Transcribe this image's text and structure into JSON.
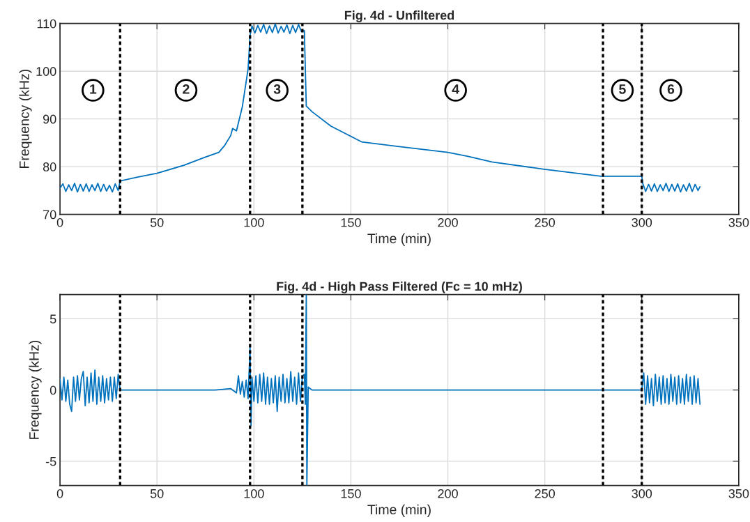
{
  "chart_data": [
    {
      "type": "line",
      "title": "Fig. 4d - Unfiltered",
      "xlabel": "Time (min)",
      "ylabel": "Frequency (kHz)",
      "xlim": [
        0,
        350
      ],
      "xticks": [
        0,
        50,
        100,
        150,
        200,
        250,
        300,
        350
      ],
      "ylim": [
        70,
        110
      ],
      "yticks": [
        70,
        80,
        90,
        100,
        110
      ],
      "grid": true,
      "line_style": "solid",
      "series": [
        {
          "color": "#0072bd",
          "x": [
            0,
            1.5,
            3,
            4.5,
            6,
            7.5,
            9,
            10.5,
            12,
            13.5,
            15,
            16.5,
            18,
            19.5,
            21,
            22.5,
            24,
            25.5,
            27,
            28.5,
            30,
            31,
            40,
            50,
            63.9,
            75,
            81.9,
            85,
            88,
            89,
            91,
            94,
            97,
            98,
            99,
            100.5,
            102,
            103.5,
            105,
            106.5,
            108,
            109.5,
            111,
            112.5,
            114,
            115.5,
            117,
            118.5,
            120,
            121.5,
            123,
            124.5,
            126,
            127,
            130,
            139.7,
            155.5,
            175,
            200,
            210,
            222.7,
            249,
            265,
            279,
            300,
            300.5,
            302,
            303.5,
            305,
            306.5,
            308,
            309.5,
            311,
            312.5,
            314,
            315.5,
            317,
            318.5,
            320,
            321.5,
            323,
            324.5,
            326,
            327.5,
            329,
            330
          ],
          "values": [
            75.5,
            76.4,
            74.8,
            76.2,
            75.0,
            76.5,
            74.7,
            76.3,
            74.9,
            76.4,
            74.8,
            76.2,
            75.0,
            76.5,
            74.8,
            76.3,
            74.9,
            76.1,
            74.7,
            76.4,
            75.0,
            77.0,
            77.8,
            78.6,
            80.3,
            82.0,
            83.0,
            84.5,
            86.5,
            88.0,
            87.5,
            92.5,
            100.5,
            107.5,
            109.5,
            108.0,
            109.6,
            108.2,
            109.8,
            107.9,
            109.5,
            108.1,
            109.9,
            108.0,
            109.4,
            108.2,
            109.7,
            107.9,
            109.6,
            108.1,
            109.8,
            108.3,
            108.5,
            92.7,
            91.5,
            88.5,
            85.2,
            84.2,
            83.0,
            82.2,
            81.0,
            79.5,
            78.7,
            78.0,
            78.0,
            76.5,
            74.8,
            76.3,
            74.9,
            76.4,
            74.8,
            76.2,
            75.0,
            76.5,
            74.8,
            76.3,
            74.9,
            76.4,
            74.7,
            76.2,
            74.9,
            76.5,
            74.8,
            76.3,
            75.0,
            75.8
          ]
        }
      ],
      "ref_lines": [
        {
          "axis": "x",
          "value": 31,
          "color": "#000000",
          "line_style": "dotted"
        },
        {
          "axis": "x",
          "value": 98,
          "color": "#000000",
          "line_style": "dotted"
        },
        {
          "axis": "x",
          "value": 125,
          "color": "#000000",
          "line_style": "dotted"
        },
        {
          "axis": "x",
          "value": 280,
          "color": "#000000",
          "line_style": "dotted"
        },
        {
          "axis": "x",
          "value": 300,
          "color": "#000000",
          "line_style": "dotted"
        }
      ],
      "annotations": [
        {
          "text": "1",
          "x": 17,
          "y": 96
        },
        {
          "text": "2",
          "x": 65,
          "y": 96
        },
        {
          "text": "3",
          "x": 112,
          "y": 96
        },
        {
          "text": "4",
          "x": 204,
          "y": 96
        },
        {
          "text": "5",
          "x": 290,
          "y": 96
        },
        {
          "text": "6",
          "x": 315,
          "y": 96
        }
      ]
    },
    {
      "type": "line",
      "title": "Fig. 4d - High Pass Filtered (Fc = 10 mHz)",
      "xlabel": "Time (min)",
      "ylabel": "Frequency (kHz)",
      "xlim": [
        0,
        350
      ],
      "xticks": [
        0,
        50,
        100,
        150,
        200,
        250,
        300,
        350
      ],
      "ylim": [
        -6.7,
        6.7
      ],
      "yticks": [
        {
          "value": -5,
          "label": "-5"
        },
        0,
        5
      ],
      "grid": true,
      "line_style": "solid",
      "series": [
        {
          "color": "#0072bd",
          "x": [
            0,
            1,
            2,
            3,
            4,
            5,
            6,
            7,
            8,
            9,
            10,
            11,
            12,
            13,
            14,
            15,
            16,
            17,
            18,
            19,
            20,
            21,
            22,
            23,
            24,
            25,
            26,
            27,
            28,
            29,
            30,
            31,
            50,
            80,
            88,
            91,
            92,
            93,
            94,
            95,
            96,
            97,
            98,
            98.5,
            99,
            100,
            101,
            102,
            103,
            104,
            105,
            106,
            107,
            108,
            109,
            110,
            111,
            112,
            113,
            114,
            115,
            116,
            117,
            118,
            119,
            120,
            121,
            122,
            123,
            124,
            125,
            126,
            126.5,
            127,
            127.3,
            128,
            130,
            150,
            200,
            250,
            300,
            301,
            302,
            303,
            304,
            305,
            306,
            307,
            308,
            309,
            310,
            311,
            312,
            313,
            314,
            315,
            316,
            317,
            318,
            319,
            320,
            321,
            322,
            323,
            324,
            325,
            326,
            327,
            328,
            329,
            330
          ],
          "values": [
            0.8,
            -0.7,
            0.9,
            -0.8,
            0.7,
            -1.0,
            -1.5,
            0.9,
            -0.8,
            1.0,
            -0.7,
            0.8,
            1.3,
            -1.1,
            0.9,
            -0.9,
            1.2,
            -0.8,
            1.4,
            -1.0,
            0.9,
            -0.8,
            1.0,
            -0.9,
            0.8,
            -0.7,
            0.9,
            -0.8,
            0.9,
            -0.6,
            1.1,
            0,
            0,
            0,
            0.1,
            -0.2,
            1.0,
            -0.3,
            0.6,
            -0.5,
            0.7,
            -0.6,
            3.0,
            -2.5,
            0.9,
            -0.8,
            1.0,
            -0.9,
            1.1,
            -0.8,
            1.2,
            -1.0,
            0.9,
            -1.0,
            0.8,
            -0.9,
            1.0,
            -1.5,
            0.9,
            -0.8,
            1.1,
            -0.9,
            0.8,
            -0.9,
            1.3,
            -0.8,
            0.9,
            -1.0,
            1.2,
            -0.8,
            1.0,
            1.1,
            -1.0,
            6.7,
            -6.7,
            0.2,
            0,
            0,
            0,
            0,
            0,
            1.2,
            -1.0,
            1.0,
            -0.9,
            0.8,
            -1.1,
            1.1,
            -0.8,
            0.9,
            -1.0,
            1.0,
            -0.9,
            0.8,
            -1.0,
            1.1,
            -0.8,
            0.9,
            -1.0,
            1.0,
            -0.9,
            0.8,
            -1.0,
            1.1,
            -0.8,
            0.9,
            -1.0,
            1.0,
            -0.9,
            0.8,
            -1.0
          ]
        }
      ],
      "ref_lines": [
        {
          "axis": "x",
          "value": 31,
          "color": "#000000",
          "line_style": "dotted"
        },
        {
          "axis": "x",
          "value": 98,
          "color": "#000000",
          "line_style": "dotted"
        },
        {
          "axis": "x",
          "value": 125,
          "color": "#000000",
          "line_style": "dotted"
        },
        {
          "axis": "x",
          "value": 280,
          "color": "#000000",
          "line_style": "dotted"
        },
        {
          "axis": "x",
          "value": 300,
          "color": "#000000",
          "line_style": "dotted"
        }
      ]
    }
  ]
}
